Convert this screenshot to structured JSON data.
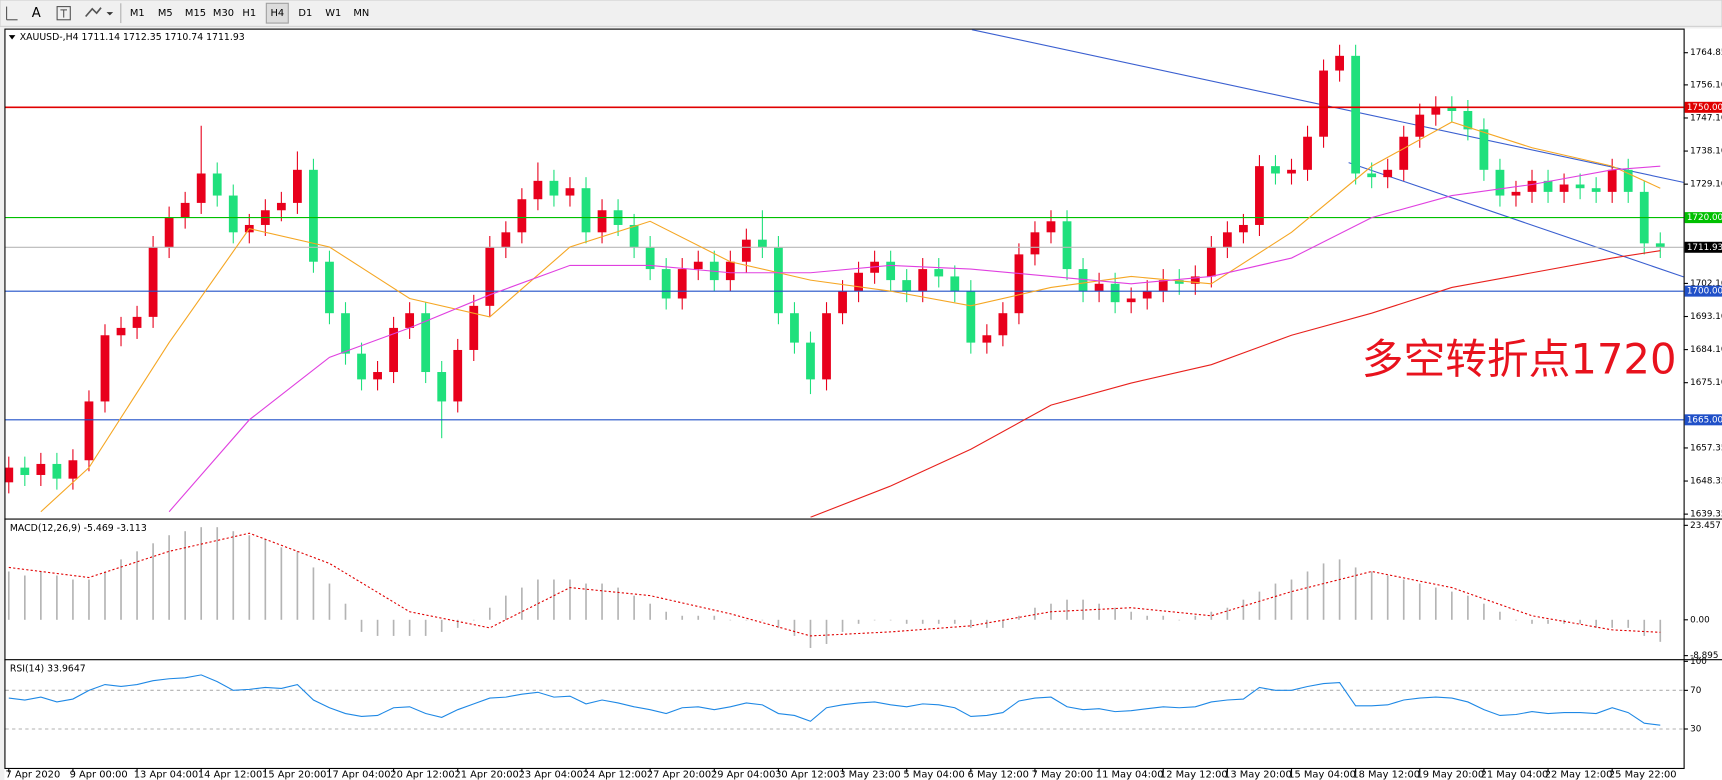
{
  "toolbar": {
    "font_tool": "A",
    "timeframes": [
      "M1",
      "M5",
      "M15",
      "M30",
      "H1",
      "H4",
      "D1",
      "W1",
      "MN"
    ],
    "active_timeframe": "H4"
  },
  "chart_data": [
    {
      "type": "candlestick",
      "title": "XAUUSD-,H4  1711.14 1712.35 1710.74 1711.93",
      "categories": [
        "7 Apr 2020",
        null,
        null,
        null,
        "9 Apr 00:00",
        null,
        null,
        null,
        "13 Apr 04:00",
        null,
        null,
        null,
        "14 Apr 12:00",
        null,
        null,
        null,
        "15 Apr 20:00",
        null,
        null,
        null,
        "17 Apr 04:00",
        null,
        null,
        null,
        "20 Apr 12:00",
        null,
        null,
        null,
        "21 Apr 20:00",
        null,
        null,
        null,
        "23 Apr 04:00",
        null,
        null,
        null,
        "24 Apr 12:00",
        null,
        null,
        null,
        "27 Apr 20:00",
        null,
        null,
        null,
        "29 Apr 04:00",
        null,
        null,
        null,
        "30 Apr 12:00",
        null,
        null,
        null,
        "3 May 23:00",
        null,
        null,
        null,
        "5 May 04:00",
        null,
        null,
        null,
        "6 May 12:00",
        null,
        null,
        null,
        "7 May 20:00",
        null,
        null,
        null,
        "11 May 04:00",
        null,
        null,
        null,
        "12 May 12:00",
        null,
        null,
        null,
        "13 May 20:00",
        null,
        null,
        null,
        "15 May 04:00",
        null,
        null,
        null,
        "18 May 12:00",
        null,
        null,
        null,
        "19 May 20:00",
        null,
        null,
        null,
        "21 May 04:00",
        null,
        null,
        null,
        "22 May 12:00",
        null,
        null,
        null,
        "25 May 22:00",
        null,
        null,
        null
      ],
      "open": [
        1648,
        1652,
        1650,
        1653,
        1649,
        1654,
        1670,
        1688,
        1690,
        1693,
        1712,
        1720,
        1724,
        1732,
        1726,
        1716,
        1718,
        1722,
        1724,
        1733,
        1708,
        1694,
        1683,
        1676,
        1678,
        1690,
        1694,
        1678,
        1670,
        1684,
        1696,
        1712,
        1716,
        1725,
        1730,
        1726,
        1728,
        1716,
        1722,
        1718,
        1712,
        1706,
        1698,
        1706,
        1708,
        1703,
        1708,
        1714,
        1712,
        1694,
        1686,
        1676,
        1694,
        1700,
        1705,
        1708,
        1703,
        1700,
        1706,
        1704,
        1700,
        1686,
        1688,
        1694,
        1710,
        1716,
        1719,
        1706,
        1700,
        1702,
        1697,
        1698,
        1700,
        1703,
        1702,
        1704,
        1712,
        1716,
        1718,
        1734,
        1732,
        1733,
        1742,
        1760,
        1764,
        1732,
        1731,
        1733,
        1742,
        1748,
        1750,
        1749,
        1744,
        1733,
        1726,
        1727,
        1730,
        1727,
        1729,
        1728,
        1727,
        1733,
        1727,
        1713
      ],
      "high": [
        1655,
        1655,
        1656,
        1656,
        1657,
        1673,
        1691,
        1693,
        1696,
        1715,
        1723,
        1727,
        1745,
        1735,
        1729,
        1721,
        1725,
        1727,
        1738,
        1736,
        1711,
        1697,
        1686,
        1681,
        1693,
        1697,
        1697,
        1681,
        1687,
        1699,
        1715,
        1719,
        1728,
        1735,
        1733,
        1731,
        1731,
        1725,
        1725,
        1721,
        1715,
        1709,
        1709,
        1711,
        1711,
        1711,
        1717,
        1722,
        1715,
        1697,
        1689,
        1697,
        1703,
        1708,
        1711,
        1711,
        1706,
        1709,
        1709,
        1707,
        1703,
        1691,
        1697,
        1713,
        1719,
        1722,
        1722,
        1709,
        1705,
        1705,
        1701,
        1703,
        1706,
        1706,
        1707,
        1715,
        1719,
        1721,
        1737,
        1737,
        1736,
        1745,
        1763,
        1767,
        1767,
        1735,
        1736,
        1745,
        1751,
        1753,
        1753,
        1752,
        1747,
        1736,
        1730,
        1733,
        1733,
        1732,
        1732,
        1731,
        1736,
        1736,
        1730,
        1716
      ],
      "low": [
        1645,
        1647,
        1647,
        1646,
        1646,
        1651,
        1667,
        1685,
        1687,
        1690,
        1709,
        1717,
        1721,
        1723,
        1713,
        1713,
        1715,
        1719,
        1721,
        1705,
        1691,
        1680,
        1673,
        1673,
        1675,
        1687,
        1675,
        1660,
        1667,
        1681,
        1693,
        1709,
        1713,
        1722,
        1723,
        1723,
        1713,
        1713,
        1715,
        1709,
        1703,
        1695,
        1695,
        1703,
        1700,
        1700,
        1705,
        1709,
        1691,
        1683,
        1672,
        1673,
        1691,
        1697,
        1702,
        1700,
        1697,
        1697,
        1701,
        1697,
        1683,
        1683,
        1685,
        1691,
        1707,
        1713,
        1703,
        1697,
        1697,
        1694,
        1694,
        1695,
        1697,
        1699,
        1699,
        1701,
        1709,
        1713,
        1715,
        1729,
        1729,
        1730,
        1739,
        1757,
        1729,
        1728,
        1728,
        1730,
        1739,
        1745,
        1746,
        1741,
        1730,
        1723,
        1723,
        1724,
        1724,
        1724,
        1725,
        1724,
        1724,
        1724,
        1710,
        1709
      ],
      "close": [
        1652,
        1650,
        1653,
        1649,
        1654,
        1670,
        1688,
        1690,
        1693,
        1712,
        1720,
        1724,
        1732,
        1726,
        1716,
        1718,
        1722,
        1724,
        1733,
        1708,
        1694,
        1683,
        1676,
        1678,
        1690,
        1694,
        1678,
        1670,
        1684,
        1696,
        1712,
        1716,
        1725,
        1730,
        1726,
        1728,
        1716,
        1722,
        1718,
        1712,
        1706,
        1698,
        1706,
        1708,
        1703,
        1708,
        1714,
        1712,
        1694,
        1686,
        1676,
        1694,
        1700,
        1705,
        1708,
        1703,
        1700,
        1706,
        1704,
        1700,
        1686,
        1688,
        1694,
        1710,
        1716,
        1719,
        1706,
        1700,
        1702,
        1697,
        1698,
        1700,
        1703,
        1702,
        1704,
        1712,
        1716,
        1718,
        1734,
        1732,
        1733,
        1742,
        1760,
        1764,
        1732,
        1731,
        1733,
        1742,
        1748,
        1750,
        1749,
        1744,
        1733,
        1726,
        1727,
        1730,
        1727,
        1729,
        1728,
        1727,
        1733,
        1727,
        1713,
        1711.93
      ],
      "up_color": "#e8001c",
      "down_color": "#1fe07c",
      "series": [
        {
          "color": "#f5a623",
          "x": [
            2,
            5,
            10,
            15,
            20,
            25,
            30,
            35,
            40,
            45,
            50,
            55,
            60,
            65,
            70,
            75,
            80,
            85,
            90,
            95,
            100,
            103
          ],
          "values": [
            1640,
            1652,
            1686,
            1717,
            1712,
            1698,
            1693,
            1712,
            1719,
            1708,
            1703,
            1700,
            1696,
            1701,
            1704,
            1702,
            1716,
            1734,
            1746,
            1739,
            1734,
            1728
          ]
        },
        {
          "color": "#e040e0",
          "x": [
            10,
            15,
            20,
            25,
            30,
            35,
            40,
            45,
            50,
            55,
            60,
            65,
            70,
            75,
            80,
            85,
            90,
            95,
            100,
            103
          ],
          "values": [
            1640,
            1665,
            1682,
            1690,
            1699,
            1707,
            1707,
            1705,
            1705,
            1707,
            1706,
            1704,
            1702,
            1704,
            1709,
            1720,
            1726,
            1729,
            1733,
            1734
          ]
        },
        {
          "color": "#e8201c",
          "x": [
            50,
            55,
            60,
            65,
            70,
            75,
            80,
            85,
            90,
            95,
            100,
            103
          ],
          "values": [
            1638.5,
            1647,
            1657,
            1669,
            1675,
            1680,
            1688,
            1694,
            1701,
            1705,
            1709,
            1711
          ]
        }
      ],
      "hlines": [
        {
          "value": 1750,
          "label": "1750.00",
          "color": "#e00000"
        },
        {
          "value": 1720,
          "label": "1720.00",
          "color": "#00c000"
        },
        {
          "value": 1700,
          "label": "1700.00",
          "color": "#2050c8"
        },
        {
          "value": 1665,
          "label": "1665.00",
          "color": "#2050c8"
        }
      ],
      "last_price": 1711.93,
      "annotation": "多空转折点1720",
      "annotation_color": "#e8121d",
      "ylim": [
        1638.45,
        1771.12
      ],
      "yticks": [
        1764.85,
        {
          "value": 1756.1,
          "label": "1756.10"
        },
        {
          "value": 1747.1,
          "label": "1747.10"
        },
        {
          "value": 1738.1,
          "label": "1738.10"
        },
        {
          "value": 1729.1,
          "label": "1729.10"
        },
        {
          "value": 1702.1,
          "label": "1702.10"
        },
        {
          "value": 1693.1,
          "label": "1693.10"
        },
        {
          "value": 1684.1,
          "label": "1684.10"
        },
        {
          "value": 1675.1,
          "label": "1675.10"
        },
        1657.35,
        1648.35,
        1639.35
      ]
    },
    {
      "type": "macd",
      "title": "MACD(12,26,9) -5.469 -3.113",
      "histogram": [
        12,
        11,
        12,
        11,
        10,
        10,
        12,
        15,
        17,
        19,
        21,
        22,
        23,
        23,
        22,
        21,
        20,
        18,
        17,
        13,
        9,
        4,
        -3,
        -4,
        -4,
        -4,
        -4,
        -3,
        -2,
        0,
        3,
        6,
        8,
        10,
        10,
        10,
        9,
        9,
        8,
        6,
        4,
        2,
        1,
        1,
        1,
        0,
        0,
        0,
        -2,
        -4,
        -7,
        -6,
        -3,
        -1,
        0,
        0,
        -1,
        -1,
        -1,
        -1,
        -2,
        -2,
        -2,
        1,
        3,
        4,
        5,
        5,
        4,
        3,
        2,
        1,
        1,
        0,
        1,
        2,
        3,
        5,
        7,
        9,
        10,
        12,
        14,
        15,
        13,
        12,
        11,
        10,
        9,
        8,
        7,
        6,
        4,
        2,
        0,
        -1,
        -1,
        -1,
        -1,
        -2,
        -2,
        -2,
        -4,
        -5.469
      ],
      "histogram_color": "#b4b4b4",
      "signal": {
        "color": "#e00000",
        "x": [
          0,
          5,
          10,
          15,
          20,
          25,
          30,
          35,
          40,
          45,
          50,
          55,
          60,
          65,
          70,
          75,
          80,
          85,
          90,
          95,
          100,
          103
        ],
        "values": [
          13,
          10.5,
          17,
          21.5,
          14,
          2,
          -2,
          8,
          6,
          1.5,
          -4,
          -3,
          -1.5,
          2,
          3,
          1,
          7,
          12,
          8,
          1,
          -2.5,
          -3.113
        ]
      },
      "ylim": [
        -9.5,
        24.6
      ],
      "yticks": [
        23.457,
        {
          "value": 0,
          "label": "0.00"
        },
        -8.895
      ]
    },
    {
      "type": "line",
      "title": "RSI(14) 33.9647",
      "color": "#1e88e5",
      "values": [
        62,
        60,
        63,
        58,
        61,
        70,
        76,
        74,
        76,
        80,
        82,
        83,
        86,
        79,
        70,
        71,
        73,
        72,
        76,
        60,
        52,
        46,
        43,
        44,
        52,
        53,
        46,
        42,
        50,
        56,
        62,
        63,
        66,
        68,
        63,
        64,
        56,
        60,
        57,
        53,
        50,
        46,
        52,
        53,
        50,
        53,
        57,
        55,
        46,
        44,
        38,
        52,
        55,
        57,
        58,
        55,
        53,
        56,
        55,
        52,
        43,
        44,
        47,
        59,
        62,
        63,
        53,
        50,
        51,
        48,
        49,
        51,
        53,
        52,
        53,
        58,
        60,
        61,
        73,
        70,
        70,
        74,
        77,
        78,
        54,
        54,
        55,
        60,
        62,
        63,
        62,
        58,
        50,
        44,
        45,
        48,
        46,
        47,
        47,
        46,
        52,
        47,
        36,
        33.9647
      ],
      "levels": [
        70,
        30
      ],
      "ylim": [
        -11.4,
        100
      ],
      "yticks": [
        100,
        70,
        30
      ]
    }
  ]
}
